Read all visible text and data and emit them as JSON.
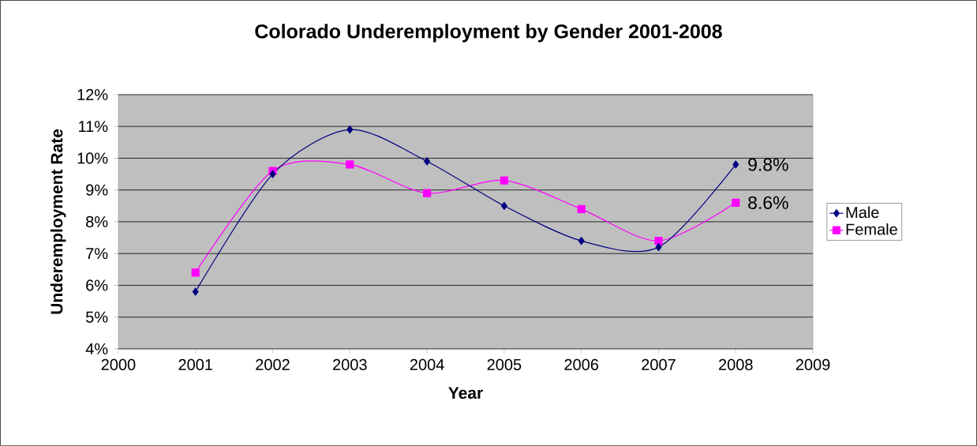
{
  "chart_data": {
    "type": "line",
    "title": "Colorado Underemployment by Gender 2001-2008",
    "xlabel": "Year",
    "ylabel": "Underemployment Rate",
    "x": [
      2001,
      2002,
      2003,
      2004,
      2005,
      2006,
      2007,
      2008
    ],
    "series": [
      {
        "name": "Male",
        "color": "#000080",
        "marker": "diamond",
        "values": [
          5.8,
          9.5,
          10.9,
          9.9,
          8.5,
          7.4,
          7.2,
          9.8
        ]
      },
      {
        "name": "Female",
        "color": "#ff00ff",
        "marker": "square",
        "values": [
          6.4,
          9.6,
          9.8,
          8.9,
          9.3,
          8.4,
          7.4,
          8.6
        ]
      }
    ],
    "xlim": [
      2000,
      2009
    ],
    "xticks": [
      2000,
      2001,
      2002,
      2003,
      2004,
      2005,
      2006,
      2007,
      2008,
      2009
    ],
    "ylim": [
      4,
      12
    ],
    "yticks": [
      {
        "value": 4,
        "label": "4%"
      },
      {
        "value": 5,
        "label": "5%"
      },
      {
        "value": 6,
        "label": "6%"
      },
      {
        "value": 7,
        "label": "7%"
      },
      {
        "value": 8,
        "label": "8%"
      },
      {
        "value": 9,
        "label": "9%"
      },
      {
        "value": 10,
        "label": "10%"
      },
      {
        "value": 11,
        "label": "11%"
      },
      {
        "value": 12,
        "label": "12%"
      }
    ],
    "annotations": [
      {
        "text": "9.8%",
        "x": 2008,
        "y": 9.8
      },
      {
        "text": "8.6%",
        "x": 2008,
        "y": 8.6
      }
    ],
    "grid": "y",
    "legend": "right",
    "line_style": "solid"
  }
}
